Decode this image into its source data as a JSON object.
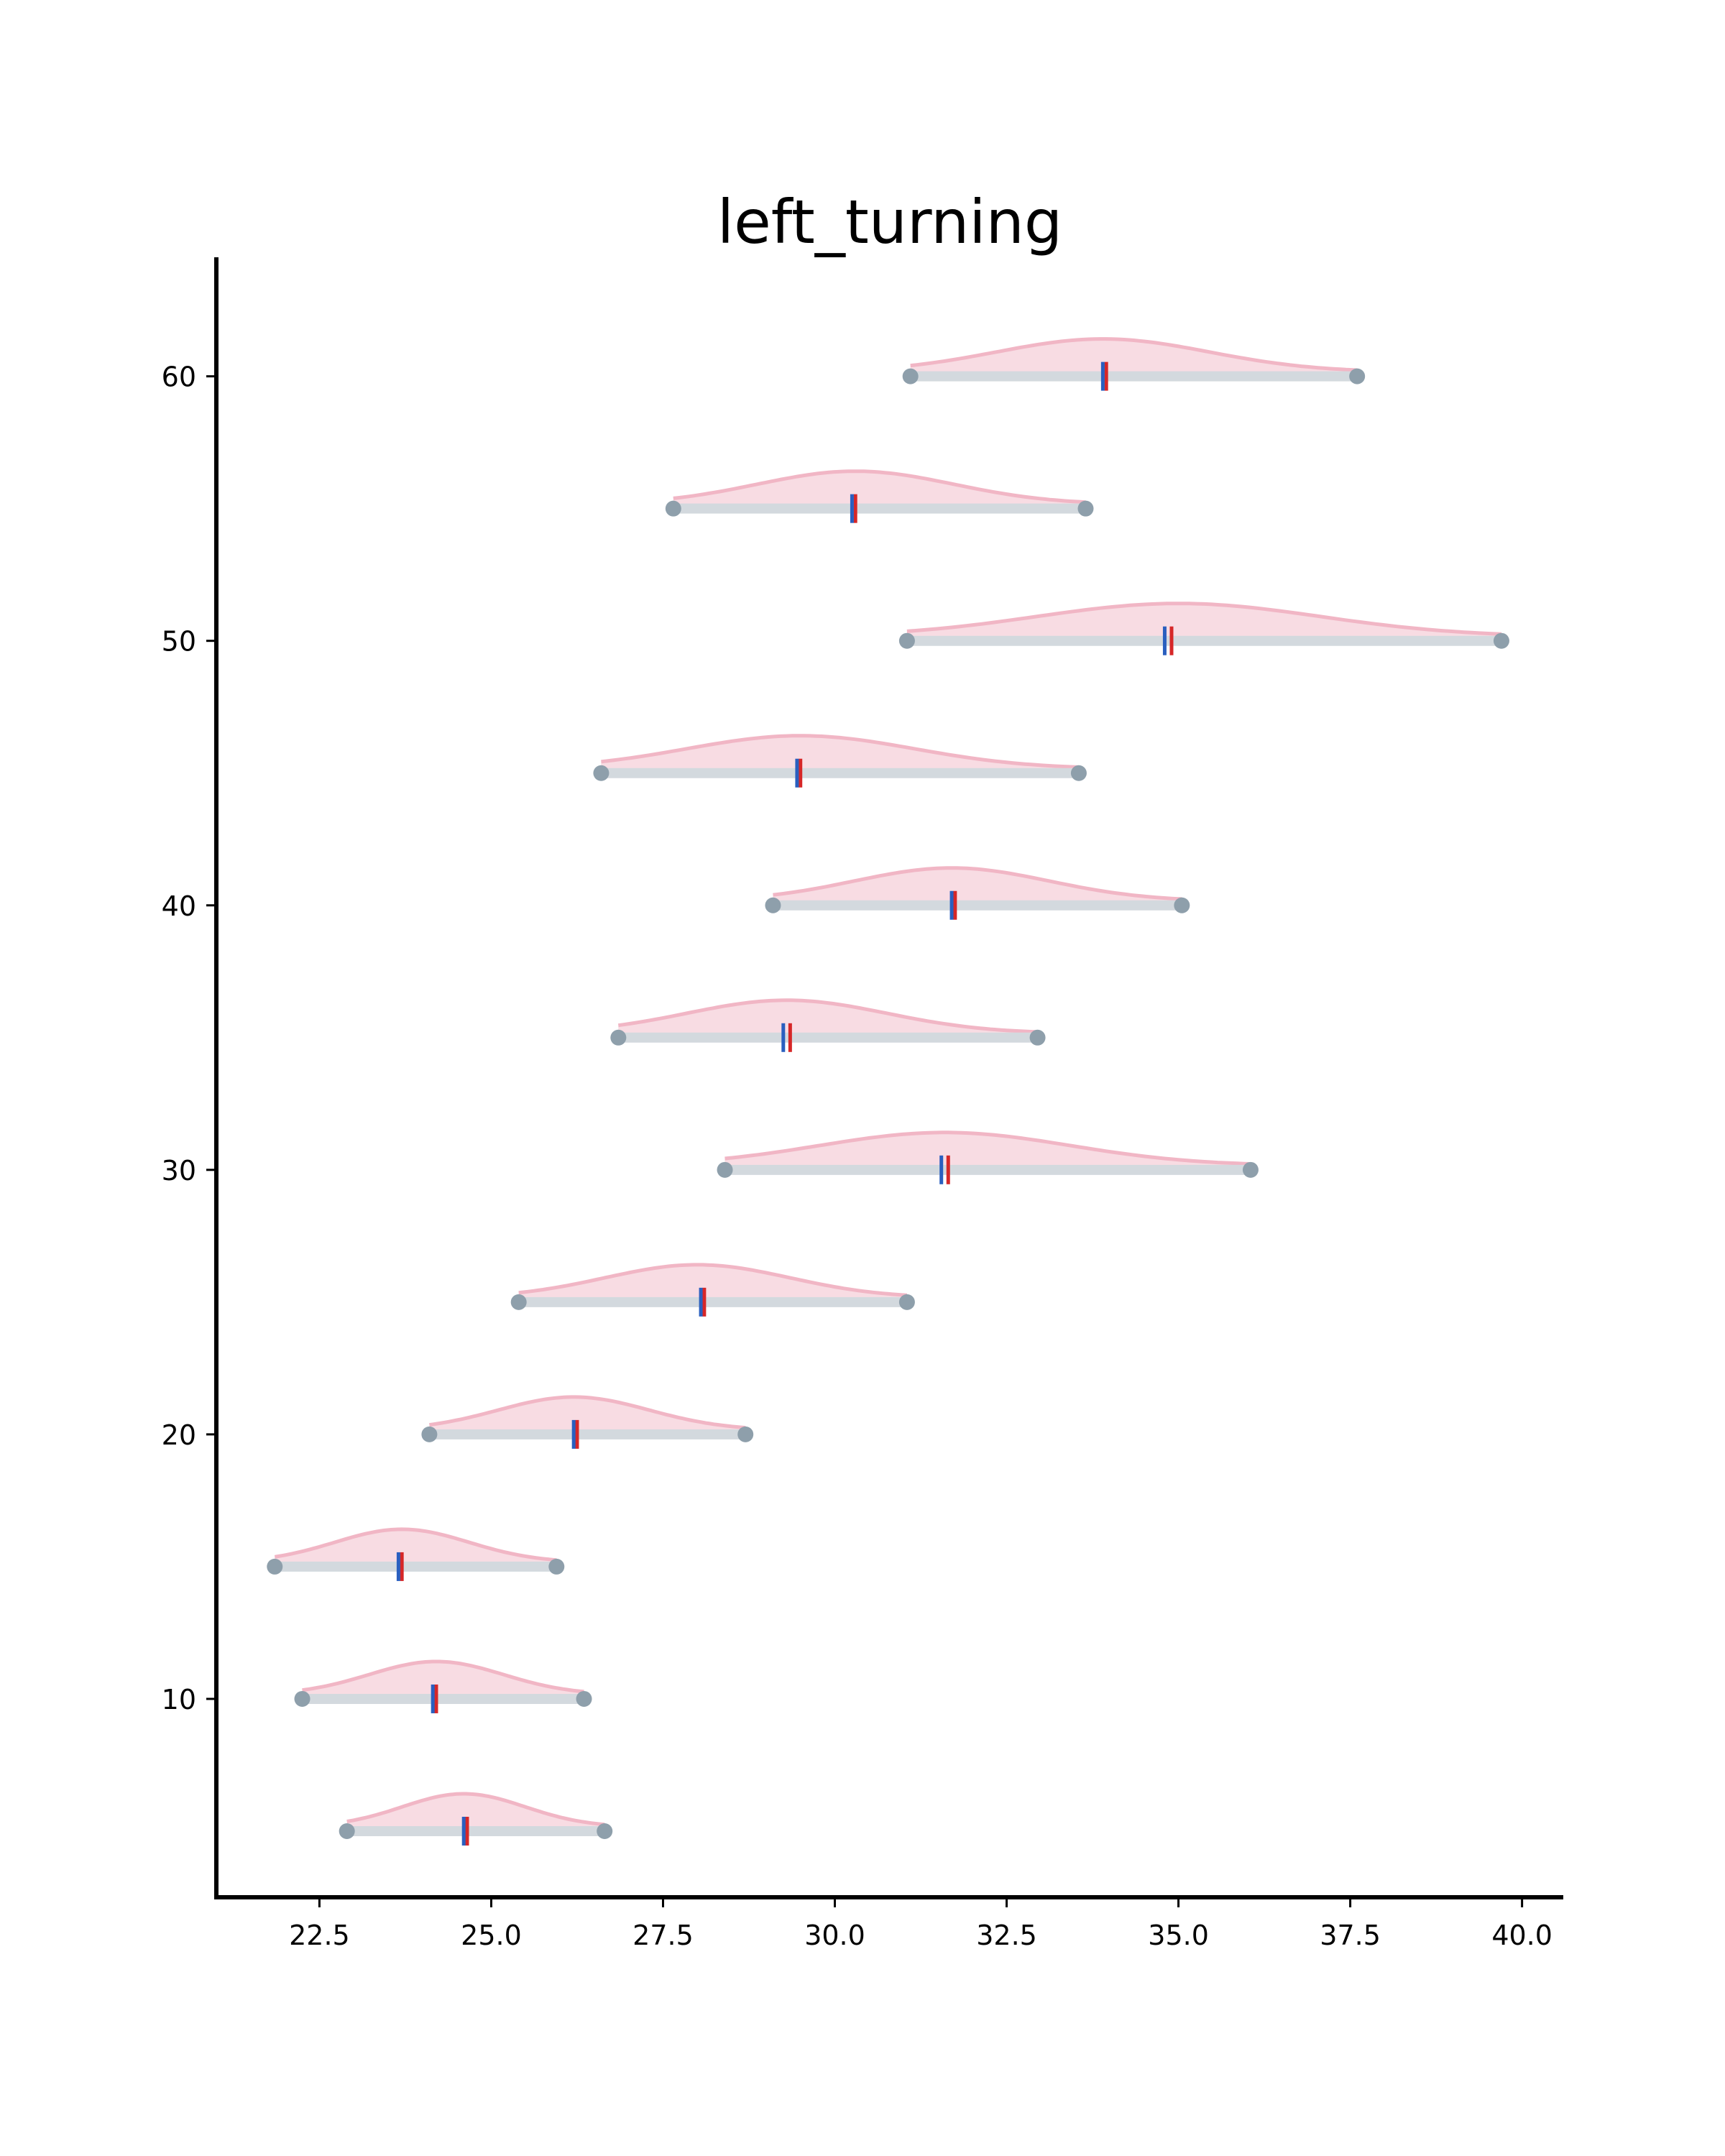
{
  "chart_data": {
    "type": "ridgeline",
    "title": "left_turning",
    "xlabel": "",
    "ylabel": "",
    "xlim": [
      21.0,
      40.6
    ],
    "ylim": [
      2.5,
      64.5
    ],
    "xticks": [
      22.5,
      25.0,
      27.5,
      30.0,
      32.5,
      35.0,
      37.5,
      40.0
    ],
    "xtick_labels": [
      "22.5",
      "25.0",
      "27.5",
      "30.0",
      "32.5",
      "35.0",
      "37.5",
      "40.0"
    ],
    "yticks": [
      10,
      20,
      30,
      40,
      50,
      60
    ],
    "ytick_labels": [
      "10",
      "20",
      "30",
      "40",
      "50",
      "60"
    ],
    "grid": false,
    "colors": {
      "density_fill": "#f8dce3",
      "density_line": "#f1b6c5",
      "range_bar": "#d3d9de",
      "endpoint": "#8e9fab",
      "mean": "#d62728",
      "median": "#2a5fbf",
      "axis": "#000000"
    },
    "series": [
      {
        "y": 5,
        "min": 22.9,
        "max": 26.65,
        "mode": 24.6,
        "mean": 24.65,
        "median": 24.6
      },
      {
        "y": 10,
        "min": 22.25,
        "max": 26.35,
        "mode": 24.2,
        "mean": 24.2,
        "median": 24.15
      },
      {
        "y": 15,
        "min": 21.85,
        "max": 25.95,
        "mode": 23.7,
        "mean": 23.7,
        "median": 23.65
      },
      {
        "y": 20,
        "min": 24.1,
        "max": 28.7,
        "mode": 26.2,
        "mean": 26.25,
        "median": 26.2
      },
      {
        "y": 25,
        "min": 25.4,
        "max": 31.05,
        "mode": 28.0,
        "mean": 28.1,
        "median": 28.05
      },
      {
        "y": 30,
        "min": 28.4,
        "max": 36.05,
        "mode": 31.6,
        "mean": 31.65,
        "median": 31.55
      },
      {
        "y": 35,
        "min": 26.85,
        "max": 32.95,
        "mode": 29.3,
        "mean": 29.35,
        "median": 29.25
      },
      {
        "y": 40,
        "min": 29.1,
        "max": 35.05,
        "mode": 31.7,
        "mean": 31.75,
        "median": 31.7
      },
      {
        "y": 45,
        "min": 26.6,
        "max": 33.55,
        "mode": 29.5,
        "mean": 29.5,
        "median": 29.45
      },
      {
        "y": 50,
        "min": 31.05,
        "max": 39.7,
        "mode": 35.0,
        "mean": 34.9,
        "median": 34.8
      },
      {
        "y": 55,
        "min": 27.65,
        "max": 33.65,
        "mode": 30.3,
        "mean": 30.3,
        "median": 30.25
      },
      {
        "y": 60,
        "min": 31.1,
        "max": 37.6,
        "mode": 33.9,
        "mean": 33.95,
        "median": 33.9
      }
    ]
  }
}
